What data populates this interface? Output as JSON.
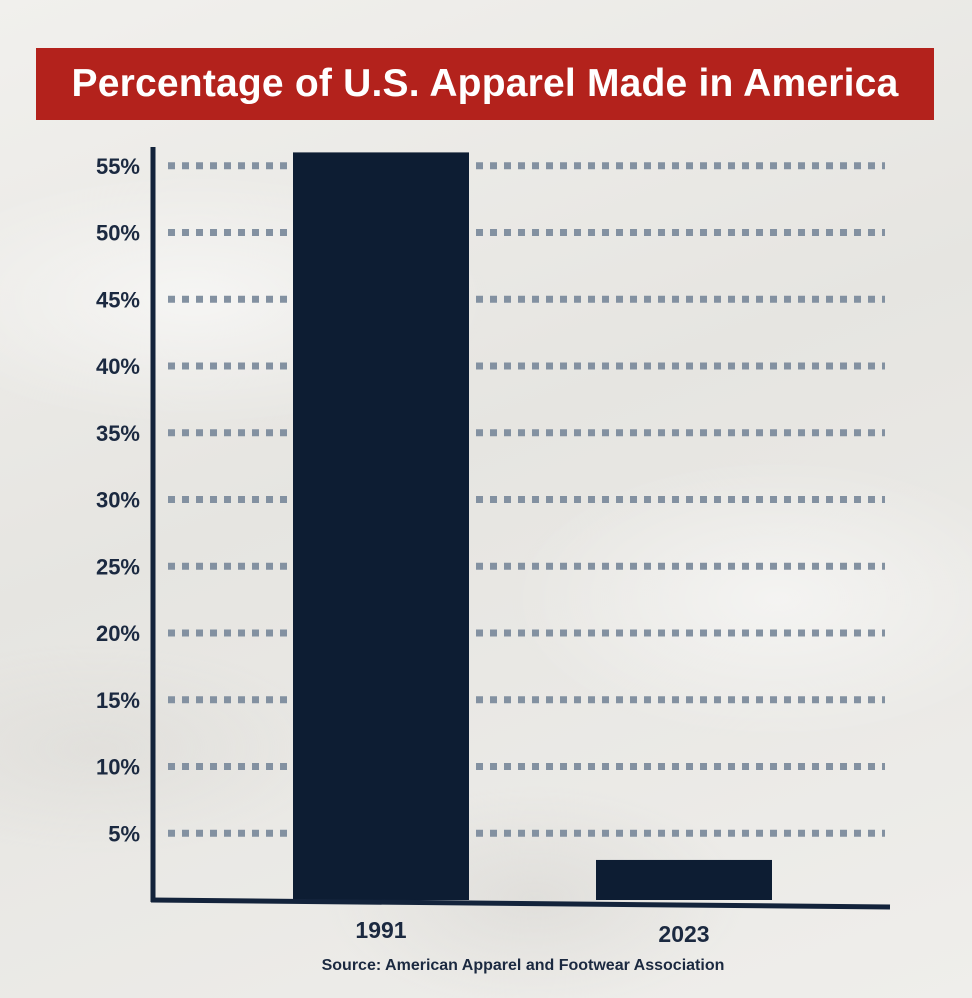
{
  "chart_data": {
    "type": "bar",
    "title": "Percentage of U.S. Apparel Made in America",
    "categories": [
      "1991",
      "2023"
    ],
    "values": [
      56,
      3
    ],
    "value_unit": "%",
    "ylim": [
      0,
      57
    ],
    "yticks": [
      5,
      10,
      15,
      20,
      25,
      30,
      35,
      40,
      45,
      50,
      55
    ],
    "ytick_labels": [
      "5%",
      "10%",
      "15%",
      "20%",
      "25%",
      "30%",
      "35%",
      "40%",
      "45%",
      "50%",
      "55%"
    ],
    "grid": "dotted horizontal",
    "xlabel": "",
    "ylabel": "",
    "source": "Source: American Apparel and Footwear Association"
  },
  "colors": {
    "title_banner": "#b3221c",
    "bar": "#0d1d33",
    "axis": "#13233b",
    "grid": "#8391a1",
    "text": "#1b2940"
  }
}
